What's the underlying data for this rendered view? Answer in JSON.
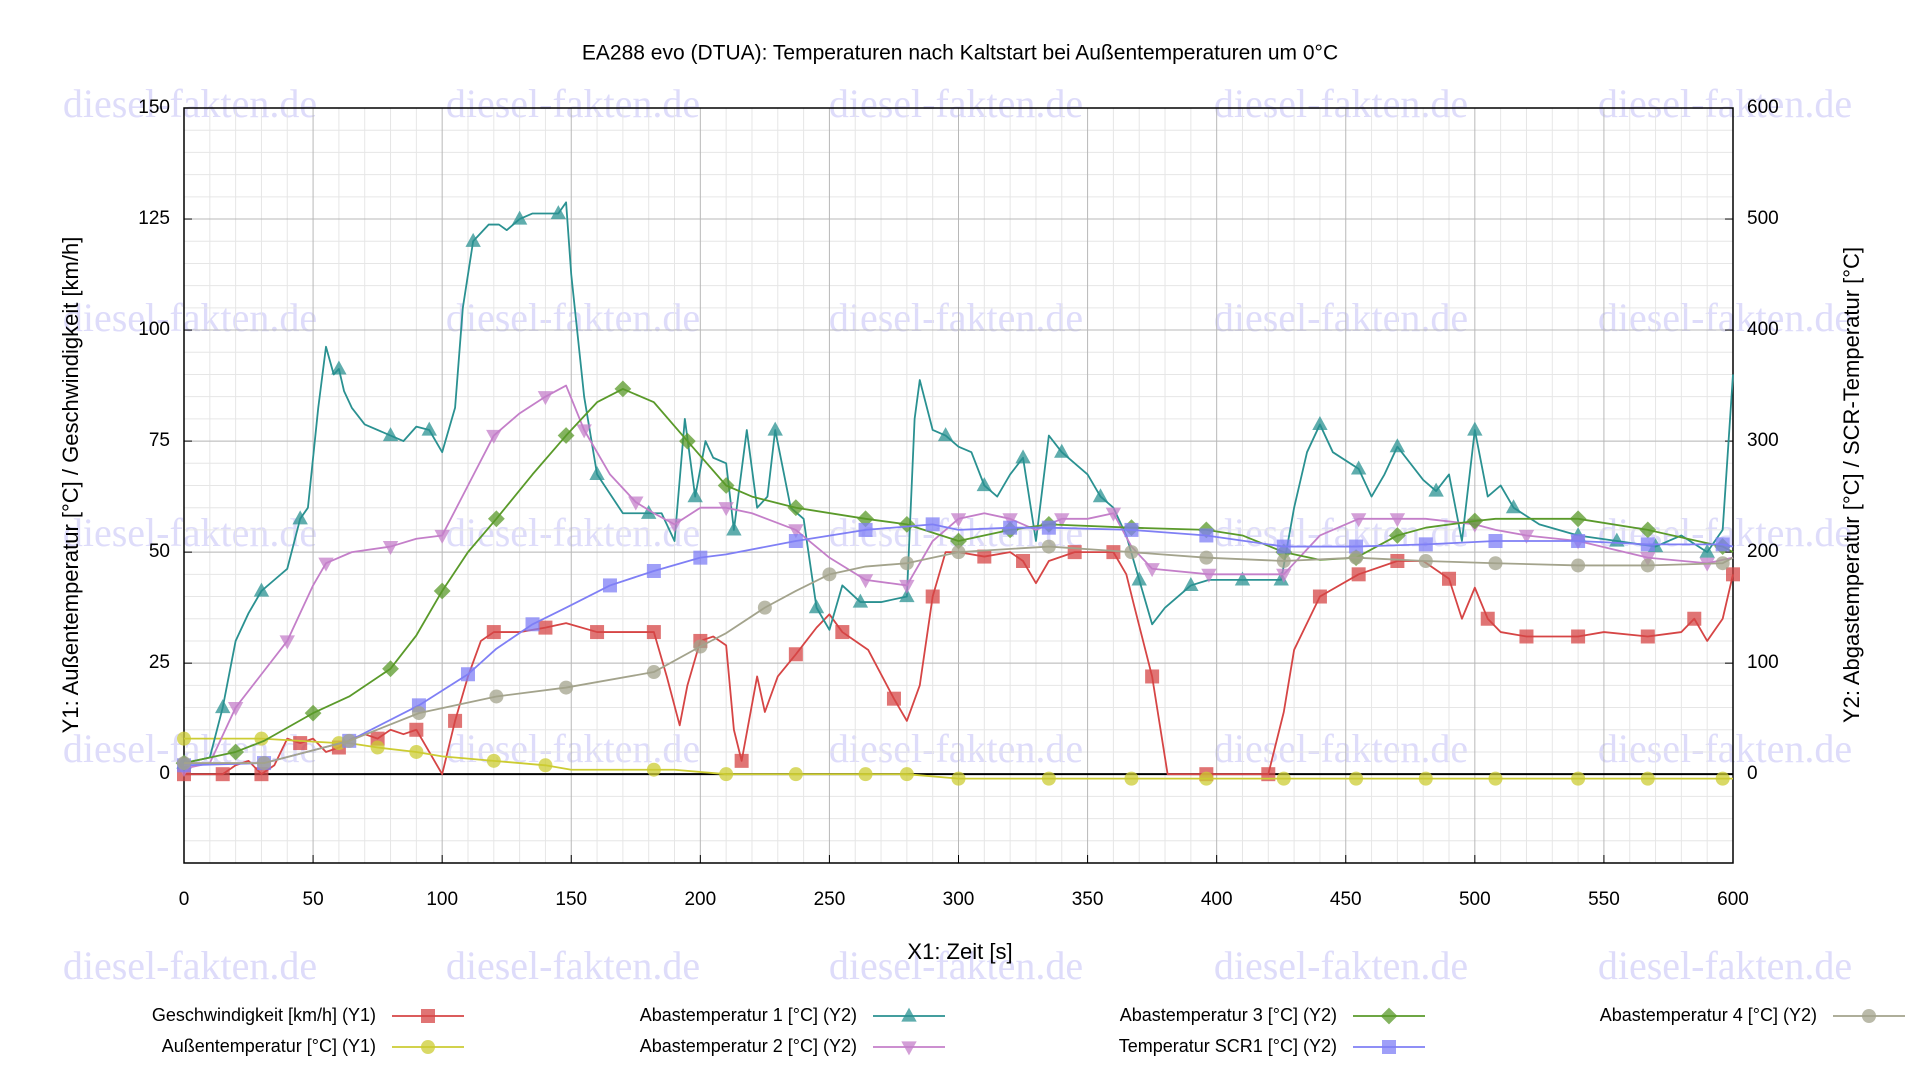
{
  "chart_data": {
    "type": "line",
    "title": "EA288 evo (DTUA): Temperaturen nach Kaltstart bei Außentemperaturen um 0°C",
    "xlabel": "X1: Zeit [s]",
    "ylabel": "Y1: Außentemperatur [°C] / Geschwindigkeit [km/h]",
    "y2label": "Y2: Abgastemperatur [°C] / SCR-Temperatur [°C]",
    "watermark": "diesel-fakten.de",
    "xlim": [
      0,
      600
    ],
    "xticks": [
      0,
      50,
      100,
      150,
      200,
      250,
      300,
      350,
      400,
      450,
      500,
      550,
      600
    ],
    "ylim": [
      -20,
      150
    ],
    "yticks": [
      0,
      25,
      50,
      75,
      100,
      125,
      150
    ],
    "y2lim": [
      -80,
      600
    ],
    "y2ticks": [
      0,
      100,
      200,
      300,
      400,
      500,
      600
    ],
    "grid": true,
    "legend": "bottom",
    "series": [
      {
        "name": "Geschwindigkeit [km/h] (Y1)",
        "color": "#d64545",
        "marker": "square",
        "axis": "y",
        "x": [
          0,
          10,
          15,
          20,
          25,
          30,
          35,
          40,
          45,
          50,
          55,
          60,
          65,
          70,
          75,
          80,
          85,
          90,
          95,
          100,
          105,
          110,
          115,
          120,
          130,
          140,
          148,
          160,
          182,
          187,
          192,
          195,
          200,
          205,
          210,
          213,
          216,
          222,
          225,
          230,
          237,
          245,
          250,
          255,
          265,
          275,
          280,
          285,
          290,
          295,
          300,
          310,
          320,
          325,
          330,
          335,
          345,
          360,
          365,
          368,
          375,
          381,
          396,
          420,
          426,
          430,
          440,
          455,
          470,
          480,
          490,
          495,
          500,
          505,
          510,
          520,
          540,
          550,
          567,
          580,
          585,
          590,
          596,
          600
        ],
        "values": [
          0,
          0,
          0,
          2,
          3,
          0,
          2,
          8,
          7,
          8,
          5,
          6,
          8,
          9,
          8,
          10,
          9,
          10,
          5,
          0,
          12,
          22,
          30,
          32,
          32,
          33,
          34,
          32,
          32,
          22,
          11,
          20,
          30,
          31,
          29,
          10,
          3,
          22,
          14,
          22,
          27,
          33,
          36,
          32,
          28,
          17,
          12,
          20,
          40,
          50,
          50,
          49,
          50,
          48,
          43,
          48,
          50,
          50,
          45,
          38,
          22,
          0,
          0,
          0,
          14,
          28,
          40,
          45,
          48,
          48,
          44,
          35,
          42,
          35,
          32,
          31,
          31,
          32,
          31,
          32,
          35,
          30,
          35,
          45
        ]
      },
      {
        "name": "Außentemperatur [°C] (Y1)",
        "color": "#cccc33",
        "marker": "circle",
        "axis": "y",
        "x": [
          0,
          30,
          60,
          64,
          75,
          90,
          100,
          120,
          140,
          150,
          182,
          190,
          210,
          237,
          264,
          280,
          300,
          335,
          367,
          396,
          426,
          454,
          481,
          508,
          540,
          567,
          596,
          600
        ],
        "values": [
          8,
          8,
          7,
          7,
          6,
          5,
          4,
          3,
          2,
          1,
          1,
          1,
          0,
          0,
          0,
          0,
          -1,
          -1,
          -1,
          -1,
          -1,
          -1,
          -1,
          -1,
          -1,
          -1,
          -1,
          -1
        ]
      },
      {
        "name": "Abastemperatur 1 [°C] (Y2)",
        "color": "#2a9191",
        "marker": "triangle",
        "axis": "y2",
        "x": [
          0,
          10,
          15,
          20,
          25,
          30,
          35,
          40,
          45,
          48,
          52,
          55,
          58,
          60,
          62,
          65,
          70,
          80,
          85,
          90,
          95,
          100,
          105,
          108,
          112,
          118,
          122,
          125,
          130,
          135,
          140,
          145,
          148,
          150,
          155,
          160,
          170,
          180,
          185,
          190,
          194,
          198,
          202,
          205,
          210,
          213,
          218,
          222,
          226,
          229,
          235,
          240,
          245,
          250,
          255,
          262,
          270,
          280,
          283,
          285,
          290,
          295,
          300,
          305,
          310,
          315,
          320,
          325,
          330,
          335,
          340,
          345,
          350,
          355,
          360,
          365,
          370,
          375,
          380,
          390,
          397,
          410,
          425,
          430,
          435,
          440,
          445,
          455,
          460,
          465,
          470,
          480,
          485,
          490,
          495,
          500,
          505,
          510,
          515,
          525,
          540,
          555,
          570,
          580,
          590,
          596,
          600
        ],
        "values": [
          10,
          15,
          60,
          120,
          145,
          165,
          175,
          185,
          230,
          240,
          330,
          385,
          360,
          365,
          345,
          330,
          315,
          305,
          300,
          313,
          310,
          290,
          330,
          420,
          480,
          495,
          495,
          490,
          500,
          505,
          505,
          505,
          515,
          450,
          340,
          270,
          235,
          235,
          235,
          210,
          320,
          250,
          300,
          285,
          280,
          220,
          310,
          240,
          250,
          310,
          240,
          230,
          150,
          130,
          170,
          155,
          155,
          160,
          320,
          355,
          310,
          305,
          295,
          290,
          260,
          250,
          270,
          285,
          210,
          305,
          290,
          280,
          270,
          250,
          240,
          215,
          175,
          135,
          150,
          170,
          175,
          175,
          175,
          240,
          290,
          315,
          290,
          275,
          250,
          270,
          295,
          265,
          255,
          270,
          210,
          310,
          250,
          260,
          240,
          225,
          215,
          210,
          205,
          215,
          200,
          220,
          360
        ]
      },
      {
        "name": "Abastemperatur 2 [°C] (Y2)",
        "color": "#c47fc9",
        "marker": "triangle-down",
        "axis": "y2",
        "x": [
          0,
          10,
          20,
          30,
          40,
          50,
          55,
          65,
          80,
          90,
          100,
          110,
          120,
          130,
          140,
          148,
          155,
          165,
          175,
          182,
          190,
          200,
          210,
          220,
          237,
          250,
          264,
          280,
          290,
          300,
          310,
          320,
          330,
          340,
          350,
          360,
          367,
          375,
          397,
          410,
          426,
          440,
          455,
          470,
          481,
          500,
          508,
          520,
          540,
          567,
          590,
          600
        ],
        "values": [
          5,
          10,
          60,
          90,
          120,
          170,
          190,
          200,
          205,
          212,
          215,
          260,
          305,
          325,
          340,
          350,
          310,
          270,
          245,
          235,
          225,
          240,
          240,
          235,
          220,
          195,
          175,
          170,
          210,
          230,
          235,
          230,
          220,
          230,
          230,
          235,
          205,
          185,
          180,
          180,
          180,
          215,
          230,
          230,
          230,
          225,
          220,
          215,
          210,
          195,
          190,
          195
        ]
      },
      {
        "name": "Abastemperatur 3 [°C] (Y2)",
        "color": "#5a9a2a",
        "marker": "diamond",
        "axis": "y2",
        "x": [
          0,
          20,
          31,
          50,
          64,
          80,
          90,
          100,
          110,
          121,
          135,
          148,
          160,
          170,
          182,
          195,
          210,
          220,
          237,
          264,
          280,
          300,
          320,
          335,
          367,
          396,
          410,
          426,
          440,
          454,
          470,
          481,
          500,
          508,
          540,
          567,
          596,
          600
        ],
        "values": [
          10,
          20,
          30,
          55,
          70,
          95,
          125,
          165,
          200,
          230,
          270,
          305,
          335,
          347,
          335,
          300,
          260,
          250,
          240,
          230,
          225,
          210,
          220,
          225,
          222,
          220,
          215,
          200,
          193,
          195,
          215,
          222,
          228,
          230,
          230,
          220,
          205,
          200
        ]
      },
      {
        "name": "Temperatur SCR1 [°C] (Y2)",
        "color": "#7f7ff5",
        "marker": "square",
        "axis": "y2",
        "x": [
          0,
          31,
          64,
          91,
          110,
          121,
          135,
          148,
          165,
          182,
          200,
          210,
          237,
          264,
          290,
          300,
          320,
          335,
          367,
          396,
          426,
          454,
          481,
          508,
          540,
          567,
          596,
          600
        ],
        "values": [
          8,
          10,
          30,
          62,
          90,
          113,
          135,
          150,
          170,
          183,
          195,
          198,
          210,
          220,
          225,
          220,
          222,
          222,
          220,
          215,
          205,
          205,
          207,
          210,
          210,
          207,
          207,
          205
        ]
      },
      {
        "name": "Abastemperatur 4 [°C] (Y2)",
        "color": "#a3a38c",
        "marker": "circle",
        "axis": "y2",
        "x": [
          0,
          31,
          64,
          91,
          121,
          148,
          182,
          200,
          210,
          225,
          237,
          250,
          264,
          280,
          300,
          335,
          367,
          396,
          426,
          454,
          481,
          508,
          540,
          567,
          596,
          600
        ],
        "values": [
          10,
          10,
          30,
          55,
          70,
          78,
          92,
          115,
          127,
          150,
          165,
          180,
          187,
          190,
          200,
          205,
          200,
          195,
          192,
          195,
          192,
          190,
          188,
          188,
          190,
          195
        ]
      }
    ]
  }
}
